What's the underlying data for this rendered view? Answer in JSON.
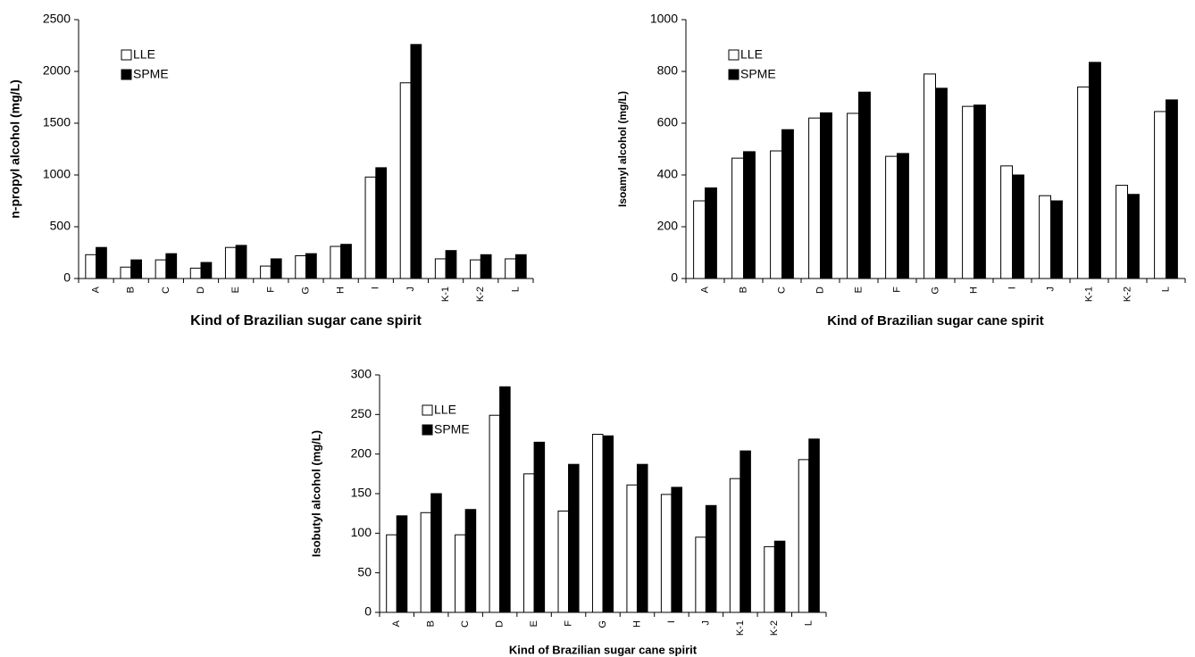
{
  "chart_data": [
    {
      "type": "bar",
      "xlabel": "Kind of Brazilian sugar cane spirit",
      "ylabel": "n-propyl alcohol (mg/L)",
      "categories": [
        "A",
        "B",
        "C",
        "D",
        "E",
        "F",
        "G",
        "H",
        "I",
        "J",
        "K-1",
        "K-2",
        "L"
      ],
      "series": [
        {
          "name": "LLE",
          "color": "#ffffff",
          "values": [
            230,
            110,
            180,
            100,
            300,
            120,
            220,
            310,
            980,
            1890,
            190,
            180,
            190
          ]
        },
        {
          "name": "SPME",
          "color": "#000000",
          "values": [
            300,
            180,
            240,
            155,
            320,
            190,
            240,
            330,
            1070,
            2260,
            270,
            230,
            230
          ]
        }
      ],
      "ylim": [
        0,
        2500
      ],
      "yticks": [
        0,
        500,
        1000,
        1500,
        2000,
        2500
      ],
      "legend": "upper left"
    },
    {
      "type": "bar",
      "xlabel": "Kind of Brazilian sugar cane spirit",
      "ylabel": "Isoamyl alcohol (mg/L)",
      "categories": [
        "A",
        "B",
        "C",
        "D",
        "E",
        "F",
        "G",
        "H",
        "I",
        "J",
        "K-1",
        "K-2",
        "L"
      ],
      "series": [
        {
          "name": "LLE",
          "color": "#ffffff",
          "values": [
            300,
            465,
            493,
            620,
            638,
            472,
            790,
            665,
            435,
            320,
            740,
            360,
            645
          ]
        },
        {
          "name": "SPME",
          "color": "#000000",
          "values": [
            350,
            490,
            575,
            640,
            720,
            483,
            735,
            670,
            400,
            300,
            835,
            325,
            690
          ]
        }
      ],
      "ylim": [
        0,
        1000
      ],
      "yticks": [
        0,
        200,
        400,
        600,
        800,
        1000
      ],
      "legend": "upper left"
    },
    {
      "type": "bar",
      "xlabel": "Kind of Brazilian sugar cane spirit",
      "ylabel": "Isobutyl alcohol (mg/L)",
      "categories": [
        "A",
        "B",
        "C",
        "D",
        "E",
        "F",
        "G",
        "H",
        "I",
        "J",
        "K-1",
        "K-2",
        "L"
      ],
      "series": [
        {
          "name": "LLE",
          "color": "#ffffff",
          "values": [
            98,
            126,
            98,
            249,
            175,
            128,
            225,
            161,
            149,
            95,
            169,
            83,
            193
          ]
        },
        {
          "name": "SPME",
          "color": "#000000",
          "values": [
            122,
            150,
            130,
            285,
            215,
            187,
            223,
            187,
            158,
            135,
            204,
            90,
            219
          ]
        }
      ],
      "ylim": [
        0,
        300
      ],
      "yticks": [
        0,
        50,
        100,
        150,
        200,
        250,
        300
      ],
      "legend": "upper left"
    }
  ]
}
